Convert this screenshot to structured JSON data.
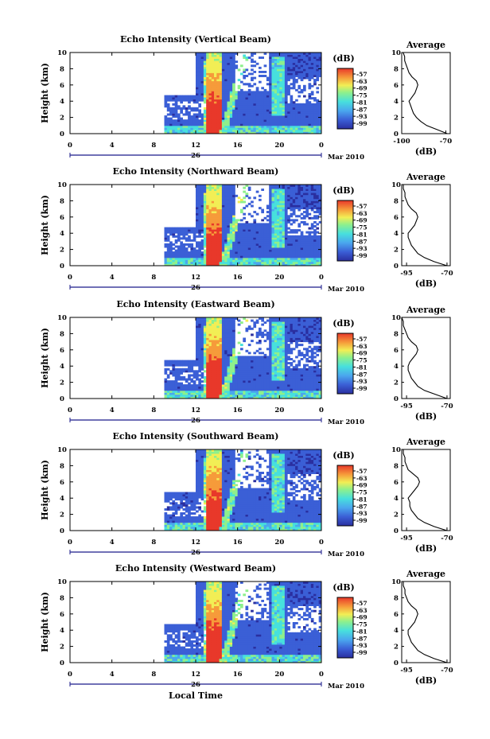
{
  "chart_data": {
    "type": "heatmap",
    "x_axis_label": "Local Time",
    "date_label": "26",
    "month_label": "Mar 2010",
    "x_ticks": [
      "0",
      "4",
      "8",
      "12",
      "16",
      "20",
      "0"
    ],
    "xlim": [
      0,
      24
    ],
    "y_axis_label": "Height (km)",
    "y_ticks": [
      "0",
      "2",
      "4",
      "6",
      "8",
      "10"
    ],
    "ylim": [
      0,
      10
    ],
    "colorbar_label": "(dB)",
    "colorbar_ticks": [
      "-57",
      "-63",
      "-69",
      "-75",
      "-81",
      "-87",
      "-93",
      "-99"
    ],
    "color_range": [
      -99,
      -57
    ],
    "average_title": "Average",
    "average_xlabel": "(dB)",
    "profile_heights": [
      0,
      0.5,
      1,
      1.5,
      2,
      2.5,
      3,
      3.5,
      4,
      4.5,
      5,
      5.5,
      6,
      6.5,
      7,
      7.5,
      8,
      8.5,
      9,
      9.5,
      10
    ],
    "panels": [
      {
        "title": "Echo Intensity (Vertical Beam)",
        "average_ticks": [
          "-100",
          "-70"
        ],
        "average_xlim": [
          -100,
          -67
        ],
        "average_profile": [
          -69,
          -76,
          -83,
          -87,
          -90,
          -92,
          -93,
          -94,
          -95,
          -93,
          -91,
          -90,
          -89,
          -90,
          -93,
          -95,
          -96,
          -97,
          -98,
          -98,
          -99
        ]
      },
      {
        "title": "Echo Intensity (Northward Beam)",
        "average_ticks": [
          "-95",
          "-70"
        ],
        "average_xlim": [
          -98,
          -68
        ],
        "average_profile": [
          -70,
          -78,
          -84,
          -88,
          -90,
          -92,
          -93,
          -94,
          -94,
          -92,
          -90,
          -89,
          -88,
          -89,
          -92,
          -94,
          -95,
          -96,
          -96,
          -97,
          -97
        ]
      },
      {
        "title": "Echo Intensity (Eastward Beam)",
        "average_ticks": [
          "-95",
          "-70"
        ],
        "average_xlim": [
          -98,
          -68
        ],
        "average_profile": [
          -70,
          -77,
          -84,
          -88,
          -90,
          -92,
          -93,
          -94,
          -94,
          -93,
          -91,
          -89,
          -88,
          -89,
          -92,
          -94,
          -95,
          -96,
          -97,
          -97,
          -98
        ]
      },
      {
        "title": "Echo Intensity (Southward Beam)",
        "average_ticks": [
          "-95",
          "-70"
        ],
        "average_xlim": [
          -98,
          -68
        ],
        "average_profile": [
          -70,
          -78,
          -84,
          -88,
          -90,
          -92,
          -93,
          -93,
          -94,
          -92,
          -90,
          -88,
          -87,
          -88,
          -91,
          -94,
          -95,
          -96,
          -96,
          -97,
          -97
        ]
      },
      {
        "title": "Echo Intensity (Westward Beam)",
        "average_ticks": [
          "-95",
          "-70"
        ],
        "average_xlim": [
          -98,
          -68
        ],
        "average_profile": [
          -70,
          -78,
          -84,
          -88,
          -90,
          -92,
          -93,
          -94,
          -94,
          -92,
          -90,
          -89,
          -88,
          -89,
          -92,
          -94,
          -95,
          -96,
          -96,
          -97,
          -97
        ]
      }
    ]
  }
}
